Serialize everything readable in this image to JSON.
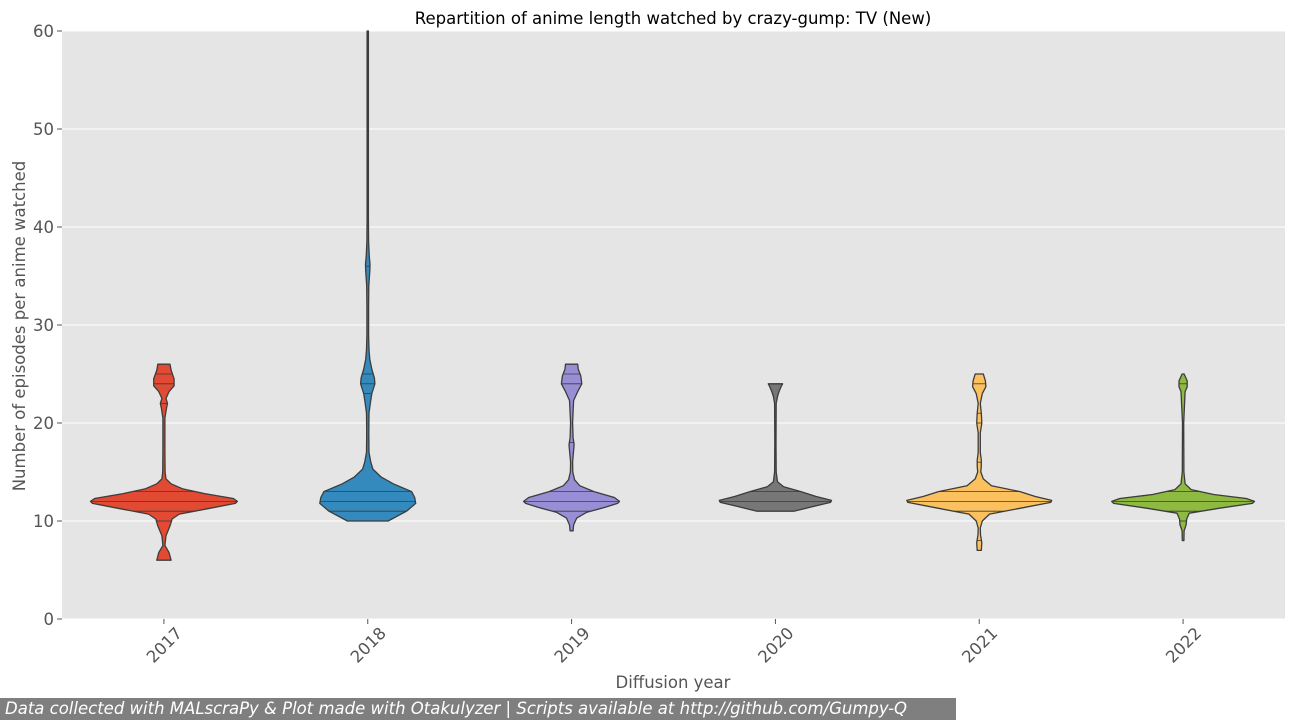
{
  "footer": {
    "text": "Data collected with MALscraPy & Plot made with Otakulyzer | Scripts available at http://github.com/Gumpy-Q"
  },
  "chart_data": {
    "type": "violin",
    "title": "Repartition of anime length watched by crazy-gump: TV (New)",
    "xlabel": "Diffusion year",
    "ylabel": "Number of episodes per anime watched",
    "ylim": [
      0,
      60
    ],
    "yticks": [
      "0",
      "10",
      "20",
      "30",
      "40",
      "50",
      "60"
    ],
    "grid": true,
    "categories": [
      "2017",
      "2018",
      "2019",
      "2020",
      "2021",
      "2022"
    ],
    "series": [
      {
        "category": "2017",
        "color": "#E24A33",
        "profile": [
          [
            6,
            0.07
          ],
          [
            6.8,
            0.05
          ],
          [
            7.5,
            0.01
          ],
          [
            8.5,
            0.02
          ],
          [
            9.5,
            0.06
          ],
          [
            10.2,
            0.08
          ],
          [
            10.7,
            0.15
          ],
          [
            11.3,
            0.45
          ],
          [
            11.8,
            0.7
          ],
          [
            12,
            0.72
          ],
          [
            12.3,
            0.68
          ],
          [
            12.8,
            0.4
          ],
          [
            13.3,
            0.18
          ],
          [
            13.8,
            0.07
          ],
          [
            14.3,
            0.02
          ],
          [
            15,
            0.012
          ],
          [
            17,
            0.01
          ],
          [
            20.5,
            0.01
          ],
          [
            21.5,
            0.025
          ],
          [
            22,
            0.035
          ],
          [
            22.5,
            0.02
          ],
          [
            23.2,
            0.05
          ],
          [
            23.8,
            0.1
          ],
          [
            24.5,
            0.1
          ],
          [
            25.4,
            0.07
          ],
          [
            26,
            0.06
          ]
        ],
        "quartile_lines": [
          10,
          11,
          12,
          13,
          22,
          24,
          25
        ]
      },
      {
        "category": "2018",
        "color": "#348ABD",
        "profile": [
          [
            10,
            0.2
          ],
          [
            11,
            0.38
          ],
          [
            11.8,
            0.47
          ],
          [
            12.4,
            0.46
          ],
          [
            13,
            0.43
          ],
          [
            13.8,
            0.25
          ],
          [
            14.5,
            0.13
          ],
          [
            15.3,
            0.05
          ],
          [
            16,
            0.03
          ],
          [
            17,
            0.012
          ],
          [
            19,
            0.01
          ],
          [
            21,
            0.012
          ],
          [
            22,
            0.025
          ],
          [
            23,
            0.04
          ],
          [
            24,
            0.07
          ],
          [
            24.6,
            0.065
          ],
          [
            25.5,
            0.04
          ],
          [
            26.5,
            0.02
          ],
          [
            27.5,
            0.012
          ],
          [
            29,
            0.008
          ],
          [
            32,
            0.008
          ],
          [
            34,
            0.01
          ],
          [
            35.5,
            0.02
          ],
          [
            36.2,
            0.022
          ],
          [
            37,
            0.015
          ],
          [
            38.5,
            0.008
          ],
          [
            41,
            0.006
          ],
          [
            50,
            0.006
          ],
          [
            60,
            0.006
          ]
        ],
        "quartile_lines": [
          11,
          12,
          13,
          23,
          24,
          25,
          36
        ]
      },
      {
        "category": "2019",
        "color": "#988ED5",
        "profile": [
          [
            9,
            0.015
          ],
          [
            9.6,
            0.02
          ],
          [
            10.3,
            0.05
          ],
          [
            10.9,
            0.15
          ],
          [
            11.4,
            0.33
          ],
          [
            11.8,
            0.45
          ],
          [
            12,
            0.47
          ],
          [
            12.4,
            0.42
          ],
          [
            13,
            0.22
          ],
          [
            13.6,
            0.08
          ],
          [
            14.2,
            0.03
          ],
          [
            15,
            0.012
          ],
          [
            16,
            0.01
          ],
          [
            17.2,
            0.02
          ],
          [
            17.8,
            0.025
          ],
          [
            18.5,
            0.015
          ],
          [
            20,
            0.01
          ],
          [
            22.3,
            0.02
          ],
          [
            23.2,
            0.06
          ],
          [
            24,
            0.1
          ],
          [
            24.8,
            0.09
          ],
          [
            25.5,
            0.065
          ],
          [
            26,
            0.06
          ]
        ],
        "quartile_lines": [
          11,
          12,
          13,
          18,
          24,
          25
        ]
      },
      {
        "category": "2020",
        "color": "#777777",
        "profile": [
          [
            11,
            0.18
          ],
          [
            11.5,
            0.38
          ],
          [
            11.9,
            0.54
          ],
          [
            12.1,
            0.55
          ],
          [
            12.5,
            0.4
          ],
          [
            13,
            0.25
          ],
          [
            13.5,
            0.08
          ],
          [
            14,
            0.02
          ],
          [
            15,
            0.008
          ],
          [
            18,
            0.006
          ],
          [
            22,
            0.008
          ],
          [
            22.7,
            0.02
          ],
          [
            23.2,
            0.035
          ],
          [
            23.8,
            0.06
          ],
          [
            24,
            0.07
          ]
        ],
        "quartile_lines": [
          12,
          13,
          24
        ]
      },
      {
        "category": "2021",
        "color": "#FBC15E",
        "profile": [
          [
            7,
            0.02
          ],
          [
            7.8,
            0.025
          ],
          [
            8.6,
            0.012
          ],
          [
            9.3,
            0.01
          ],
          [
            10,
            0.03
          ],
          [
            10.7,
            0.1
          ],
          [
            11.3,
            0.4
          ],
          [
            11.9,
            0.7
          ],
          [
            12.1,
            0.71
          ],
          [
            12.5,
            0.55
          ],
          [
            13,
            0.4
          ],
          [
            13.6,
            0.12
          ],
          [
            14.3,
            0.04
          ],
          [
            15,
            0.015
          ],
          [
            15.6,
            0.02
          ],
          [
            16.2,
            0.02
          ],
          [
            17,
            0.01
          ],
          [
            19,
            0.01
          ],
          [
            20,
            0.025
          ],
          [
            21,
            0.02
          ],
          [
            22,
            0.01
          ],
          [
            23,
            0.03
          ],
          [
            23.7,
            0.065
          ],
          [
            24.3,
            0.06
          ],
          [
            25,
            0.04
          ]
        ],
        "quartile_lines": [
          8,
          11,
          12,
          13,
          16,
          20,
          21,
          24
        ]
      },
      {
        "category": "2022",
        "color": "#8EBA42",
        "profile": [
          [
            8,
            0.008
          ],
          [
            9,
            0.01
          ],
          [
            9.6,
            0.03
          ],
          [
            10.2,
            0.035
          ],
          [
            10.8,
            0.06
          ],
          [
            11.3,
            0.35
          ],
          [
            11.8,
            0.68
          ],
          [
            12,
            0.7
          ],
          [
            12.3,
            0.62
          ],
          [
            12.7,
            0.3
          ],
          [
            13.2,
            0.08
          ],
          [
            13.8,
            0.02
          ],
          [
            15,
            0.008
          ],
          [
            20,
            0.006
          ],
          [
            23.2,
            0.02
          ],
          [
            23.7,
            0.04
          ],
          [
            24.3,
            0.04
          ],
          [
            25,
            0.01
          ]
        ],
        "quartile_lines": [
          10,
          11,
          12,
          13,
          24
        ]
      }
    ]
  }
}
